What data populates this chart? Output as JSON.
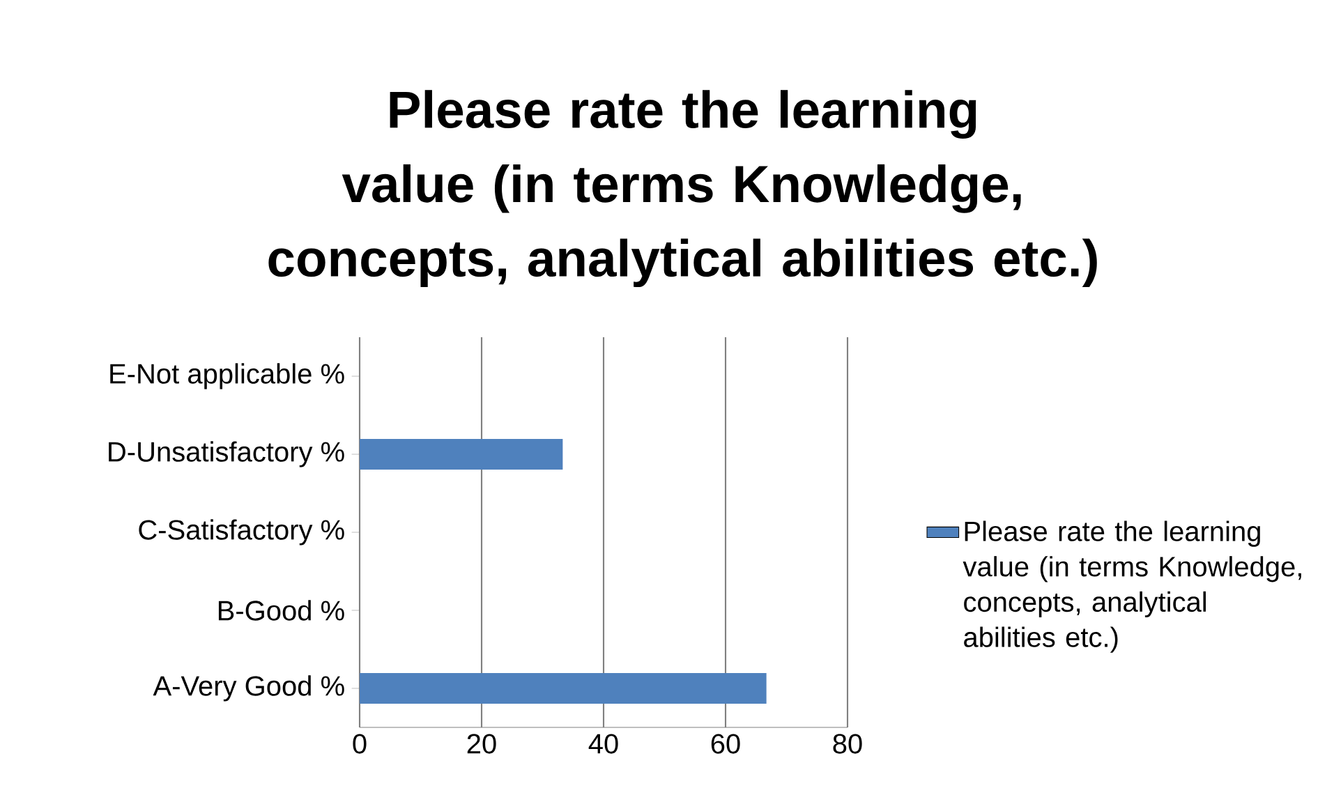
{
  "chart_data": {
    "type": "bar",
    "orientation": "horizontal",
    "title": "Please rate the learning value (in terms Knowledge, concepts, analytical abilities etc.)",
    "categories": [
      "E-Not applicable %",
      "D-Unsatisfactory %",
      "C-Satisfactory %",
      "B-Good %",
      "A-Very Good %"
    ],
    "series": [
      {
        "name": "Please rate the learning value (in terms Knowledge, concepts, analytical abilities etc.)",
        "color": "#4f81bd",
        "values": [
          0,
          33.3,
          0,
          0,
          66.7
        ]
      }
    ],
    "xlim": [
      0,
      80
    ],
    "xticks": [
      0,
      20,
      40,
      60,
      80
    ],
    "grid": "x",
    "legend": "right"
  }
}
